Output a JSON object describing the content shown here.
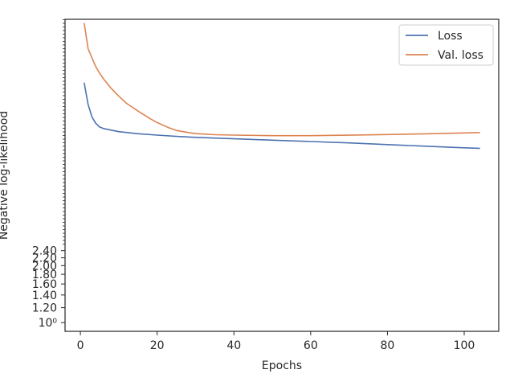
{
  "chart_data": {
    "type": "line",
    "xlabel": "Epochs",
    "ylabel": "Negative log-likelihood",
    "xlim": [
      -4,
      109
    ],
    "ylim": [
      0.9,
      40
    ],
    "yscale": "log",
    "x_ticks": [
      0,
      20,
      40,
      60,
      80,
      100
    ],
    "y_ticks": [
      {
        "value": 1.0,
        "label": "10⁰"
      },
      {
        "value": 1.2,
        "label": "1.20"
      },
      {
        "value": 1.4,
        "label": "1.40"
      },
      {
        "value": 1.6,
        "label": "1.60"
      },
      {
        "value": 1.8,
        "label": "1.80"
      },
      {
        "value": 2.0,
        "label": "2.00"
      },
      {
        "value": 2.2,
        "label": "2.20"
      },
      {
        "value": 2.4,
        "label": "2.40"
      }
    ],
    "grid": false,
    "legend": "top-right",
    "series": [
      {
        "name": "Loss",
        "color": "#4c72b0",
        "points": [
          [
            1,
            18.4
          ],
          [
            2,
            14.2
          ],
          [
            3,
            12.2
          ],
          [
            4,
            11.3
          ],
          [
            5,
            10.8
          ],
          [
            6,
            10.6
          ],
          [
            8,
            10.4
          ],
          [
            10,
            10.2
          ],
          [
            15,
            9.95
          ],
          [
            20,
            9.78
          ],
          [
            25,
            9.63
          ],
          [
            30,
            9.52
          ],
          [
            40,
            9.35
          ],
          [
            50,
            9.2
          ],
          [
            60,
            9.05
          ],
          [
            70,
            8.9
          ],
          [
            80,
            8.72
          ],
          [
            90,
            8.55
          ],
          [
            100,
            8.38
          ],
          [
            104,
            8.33
          ]
        ]
      },
      {
        "name": "Val. loss",
        "color": "#dd8452",
        "points": [
          [
            1,
            38
          ],
          [
            2,
            28
          ],
          [
            3,
            25
          ],
          [
            4,
            22.5
          ],
          [
            5,
            20.8
          ],
          [
            6,
            19.4
          ],
          [
            8,
            17.3
          ],
          [
            10,
            15.7
          ],
          [
            12,
            14.4
          ],
          [
            15,
            13.1
          ],
          [
            18,
            12.0
          ],
          [
            20,
            11.4
          ],
          [
            23,
            10.7
          ],
          [
            25,
            10.35
          ],
          [
            28,
            10.1
          ],
          [
            30,
            9.97
          ],
          [
            35,
            9.83
          ],
          [
            40,
            9.78
          ],
          [
            50,
            9.72
          ],
          [
            60,
            9.72
          ],
          [
            70,
            9.77
          ],
          [
            80,
            9.85
          ],
          [
            90,
            9.94
          ],
          [
            100,
            10.05
          ],
          [
            104,
            10.08
          ]
        ]
      }
    ]
  }
}
